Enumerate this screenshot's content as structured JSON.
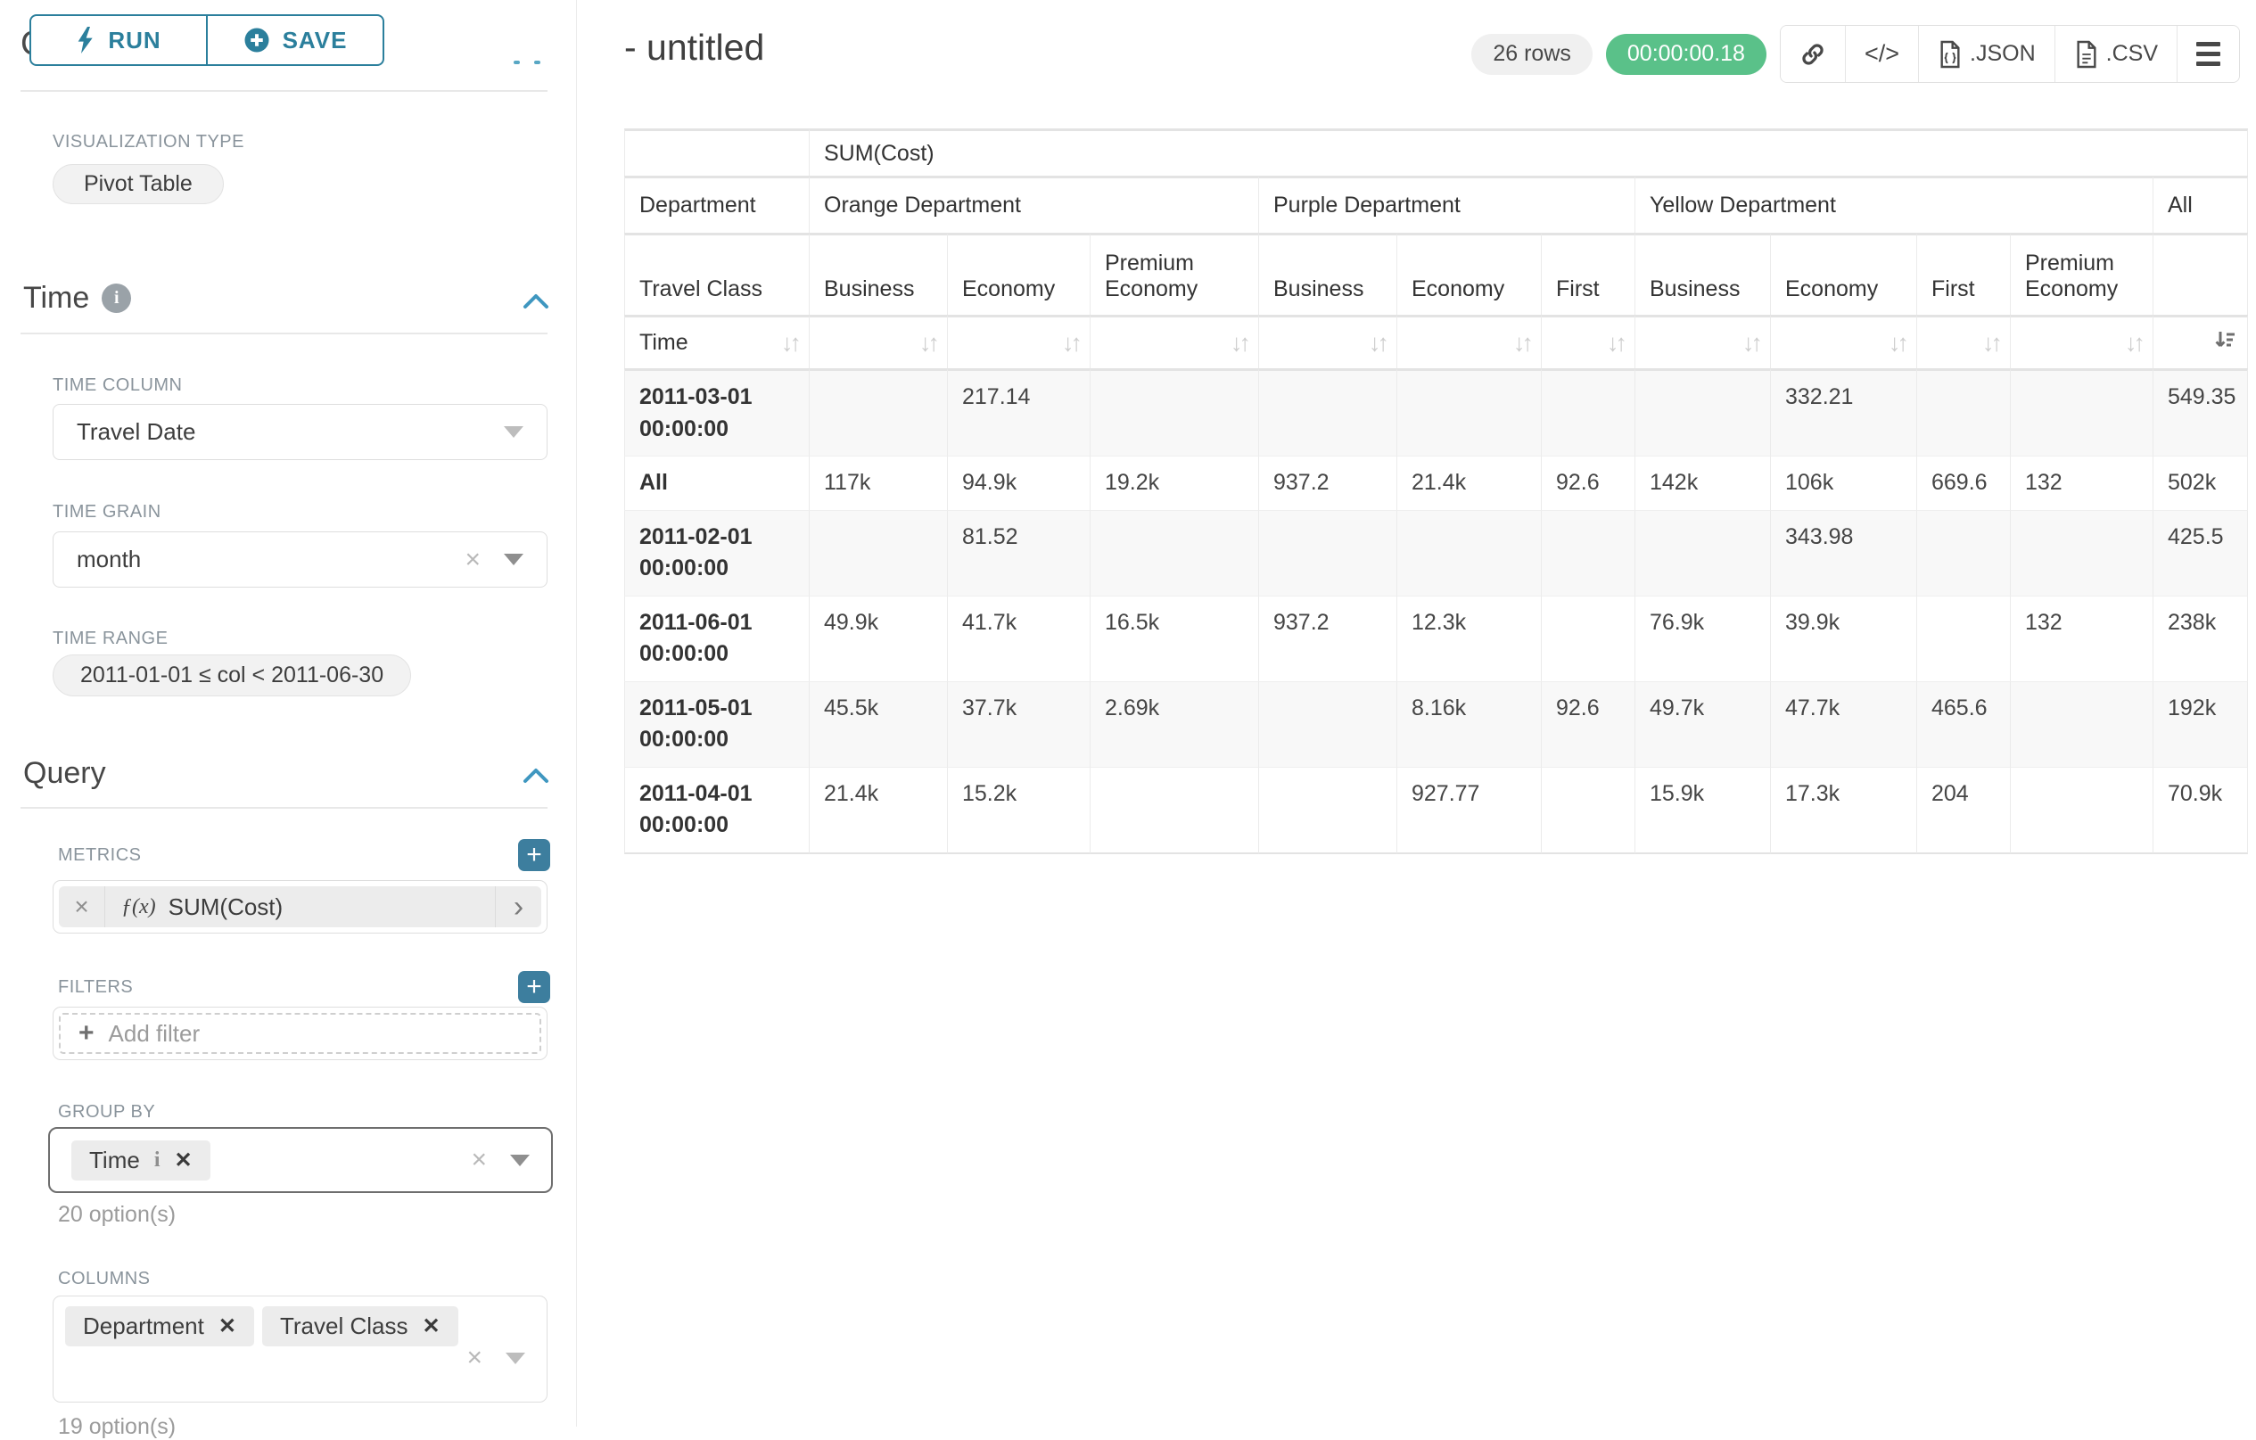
{
  "sidebar": {
    "run_label": "RUN",
    "save_label": "SAVE",
    "section_chart_type": "Chart Type",
    "viz_type_label": "VISUALIZATION TYPE",
    "viz_type_value": "Pivot Table",
    "time_section": "Time",
    "time_column_label": "TIME COLUMN",
    "time_column_value": "Travel Date",
    "time_grain_label": "TIME GRAIN",
    "time_grain_value": "month",
    "time_range_label": "TIME RANGE",
    "time_range_value": "2011-01-01 ≤ col < 2011-06-30",
    "query_section": "Query",
    "metrics_label": "METRICS",
    "metric_value": "SUM(Cost)",
    "filters_label": "FILTERS",
    "add_filter_label": "Add filter",
    "group_by_label": "GROUP BY",
    "group_by_chips": [
      "Time"
    ],
    "group_by_options": "20 option(s)",
    "columns_label": "COLUMNS",
    "columns_chips": [
      "Department",
      "Travel Class"
    ],
    "columns_options": "19 option(s)"
  },
  "header": {
    "title": "- untitled",
    "row_count": "26 rows",
    "timer": "00:00:00.18",
    "export_json_label": ".JSON",
    "export_csv_label": ".CSV"
  },
  "icons": {
    "close": "×",
    "remove": "✕",
    "info": "i",
    "fx": "ƒ(x)",
    "chevron_right": "›",
    "plus": "+",
    "code": "</>",
    "sort": "↓↑"
  },
  "colors": {
    "primary_teal": "#2b7f9c",
    "timer_green": "#5ac189",
    "label_gray": "#8a949c",
    "border_gray": "#e0e0e0",
    "row_shade": "#f8f8f8"
  },
  "chart_data": {
    "type": "table",
    "title": "SUM(Cost)",
    "metric": "SUM(Cost)",
    "column_dimension": "Department",
    "sub_column_dimension": "Travel Class",
    "row_dimension": "Time",
    "column_groups": [
      {
        "label": "Orange Department",
        "children": [
          "Business",
          "Economy",
          "Premium Economy"
        ]
      },
      {
        "label": "Purple Department",
        "children": [
          "Business",
          "Economy",
          "First"
        ]
      },
      {
        "label": "Yellow Department",
        "children": [
          "Business",
          "Economy",
          "First",
          "Premium Economy"
        ]
      },
      {
        "label": "All",
        "children": [
          ""
        ]
      }
    ],
    "sorted_column_index": 10,
    "rows": [
      {
        "label": "2011-03-01 00:00:00",
        "values": [
          "",
          "217.14",
          "",
          "",
          "",
          "",
          "",
          "332.21",
          "",
          "",
          "549.35"
        ]
      },
      {
        "label": "All",
        "values": [
          "117k",
          "94.9k",
          "19.2k",
          "937.2",
          "21.4k",
          "92.6",
          "142k",
          "106k",
          "669.6",
          "132",
          "502k"
        ]
      },
      {
        "label": "2011-02-01 00:00:00",
        "values": [
          "",
          "81.52",
          "",
          "",
          "",
          "",
          "",
          "343.98",
          "",
          "",
          "425.5"
        ]
      },
      {
        "label": "2011-06-01 00:00:00",
        "values": [
          "49.9k",
          "41.7k",
          "16.5k",
          "937.2",
          "12.3k",
          "",
          "76.9k",
          "39.9k",
          "",
          "132",
          "238k"
        ]
      },
      {
        "label": "2011-05-01 00:00:00",
        "values": [
          "45.5k",
          "37.7k",
          "2.69k",
          "",
          "8.16k",
          "92.6",
          "49.7k",
          "47.7k",
          "465.6",
          "",
          "192k"
        ]
      },
      {
        "label": "2011-04-01 00:00:00",
        "values": [
          "21.4k",
          "15.2k",
          "",
          "",
          "927.77",
          "",
          "15.9k",
          "17.3k",
          "204",
          "",
          "70.9k"
        ]
      }
    ]
  }
}
